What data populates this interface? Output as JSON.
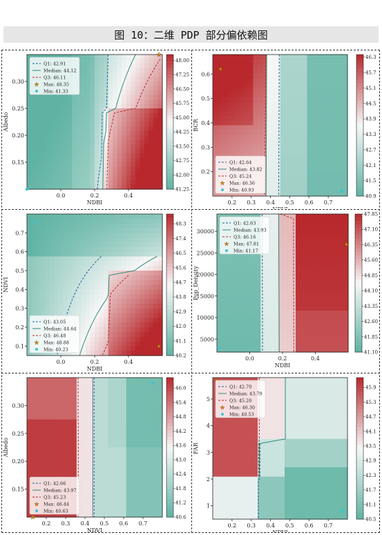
{
  "header": {
    "title": "图 10：二维 PDP 部分偏依赖图"
  },
  "colors": {
    "low": "#5fb3a3",
    "mid": "#f7f7f7",
    "high": "#b8282c",
    "q1": "#1f5f9a",
    "median": "#2e8b7a",
    "q3": "#b8282c",
    "max_marker": "#d08a1a",
    "min_marker": "#3cc4cf"
  },
  "chart_data": [
    {
      "type": "heatmap",
      "xlabel": "NDBI",
      "ylabel": "Albedo",
      "xlim": [
        -0.2,
        0.6
      ],
      "ylim": [
        0.1,
        0.35
      ],
      "xticks": [
        "0.0",
        "0.2",
        "0.4"
      ],
      "xtick_vals": [
        0.0,
        0.2,
        0.4
      ],
      "yticks": [
        "0.15",
        "0.20",
        "0.25",
        "0.30"
      ],
      "ytick_vals": [
        0.15,
        0.2,
        0.25,
        0.3
      ],
      "cbar_ticks": [
        "41.25",
        "41.50",
        "41.75",
        "42.00",
        "42.25",
        "42.50",
        "42.75",
        "43.00",
        "43.25",
        "43.50",
        "43.75",
        "44.00",
        "44.25",
        "44.50",
        "44.75",
        "45.00",
        "45.25",
        "45.50",
        "45.75",
        "46.00",
        "46.25",
        "46.50",
        "46.75",
        "47.00",
        "47.25",
        "47.50",
        "47.75",
        "48.00",
        "48.25"
      ],
      "cbar_labels": [
        "41.25",
        "42.00",
        "42.75",
        "43.50",
        "44.25",
        "45.00",
        "45.75",
        "46.50",
        "47.25",
        "48.00"
      ],
      "cbar_range": [
        41.25,
        48.3
      ],
      "legend": [
        "Q1: 42.91",
        "Median: 44.12",
        "Q3: 46.11",
        "Max: 48.35",
        "Min: 41.33"
      ],
      "legend_position": "top-left",
      "max_point": {
        "x": 0.58,
        "y": 0.35
      },
      "min_point": {
        "x": -0.2,
        "y": 0.1
      }
    },
    {
      "type": "heatmap",
      "xlabel": "NDVI",
      "ylabel": "BCR",
      "xlim": [
        0.1,
        0.8
      ],
      "ylim": [
        0.1,
        0.68
      ],
      "xticks": [
        "0.2",
        "0.3",
        "0.4",
        "0.5",
        "0.6",
        "0.7"
      ],
      "xtick_vals": [
        0.2,
        0.3,
        0.4,
        0.5,
        0.6,
        0.7
      ],
      "yticks": [
        "0.2",
        "0.3",
        "0.4",
        "0.5",
        "0.6"
      ],
      "ytick_vals": [
        0.2,
        0.3,
        0.4,
        0.5,
        0.6
      ],
      "cbar_labels": [
        "40.9",
        "41.5",
        "42.1",
        "42.7",
        "43.3",
        "43.9",
        "44.5",
        "45.1",
        "45.7",
        "46.3"
      ],
      "cbar_range": [
        40.9,
        46.4
      ],
      "legend": [
        "Q1: 42.64",
        "Median: 43.82",
        "Q3: 45.24",
        "Max: 46.36",
        "Min: 40.93"
      ],
      "legend_position": "bottom-left",
      "max_point": {
        "x": 0.14,
        "y": 0.62
      },
      "min_point": {
        "x": 0.77,
        "y": 0.12
      }
    },
    {
      "type": "heatmap",
      "xlabel": "NDBI",
      "ylabel": "NDVI",
      "xlim": [
        -0.2,
        0.6
      ],
      "ylim": [
        0.05,
        0.8
      ],
      "xticks": [
        "0.0",
        "0.2",
        "0.4"
      ],
      "xtick_vals": [
        0.0,
        0.2,
        0.4
      ],
      "yticks": [
        "0.1",
        "0.2",
        "0.3",
        "0.4",
        "0.5",
        "0.6",
        "0.7"
      ],
      "ytick_vals": [
        0.1,
        0.2,
        0.3,
        0.4,
        0.5,
        0.6,
        0.7
      ],
      "cbar_labels": [
        "40.2",
        "41.1",
        "42.0",
        "42.9",
        "43.8",
        "44.7",
        "45.6",
        "46.5",
        "47.4",
        "48.3"
      ],
      "cbar_range": [
        40.2,
        48.9
      ],
      "legend": [
        "Q1: 43.05",
        "Median: 44.64",
        "Q3: 46.48",
        "Max: 48.88",
        "Min: 40.23"
      ],
      "legend_position": "bottom-left",
      "max_point": {
        "x": 0.58,
        "y": 0.1
      },
      "min_point": {
        "x": -0.15,
        "y": 0.76
      }
    },
    {
      "type": "heatmap",
      "xlabel": "NDBI",
      "ylabel": "Pop_Density",
      "xlim": [
        -0.2,
        0.6
      ],
      "ylim": [
        2000,
        34000
      ],
      "xticks": [
        "0.0",
        "0.2",
        "0.4"
      ],
      "xtick_vals": [
        0.0,
        0.2,
        0.4
      ],
      "yticks": [
        "5000",
        "10000",
        "15000",
        "20000",
        "25000",
        "30000"
      ],
      "ytick_vals": [
        5000,
        10000,
        15000,
        20000,
        25000,
        30000
      ],
      "cbar_labels": [
        "41.10",
        "41.85",
        "42.60",
        "43.35",
        "44.10",
        "44.85",
        "45.60",
        "46.35",
        "47.10",
        "47.85"
      ],
      "cbar_range": [
        41.1,
        47.85
      ],
      "legend": [
        "Q1: 42.63",
        "Median: 43.93",
        "Q3: 46.16",
        "Max: 47.81",
        "Min: 41.17"
      ],
      "legend_position": "top-left",
      "max_point": {
        "x": 0.59,
        "y": 27000
      },
      "min_point": {
        "x": -0.19,
        "y": 3000
      }
    },
    {
      "type": "heatmap",
      "xlabel": "NDVI",
      "ylabel": "Albedo",
      "xlim": [
        0.1,
        0.8
      ],
      "ylim": [
        0.1,
        0.35
      ],
      "xticks": [
        "0.2",
        "0.3",
        "0.4",
        "0.5",
        "0.6",
        "0.7"
      ],
      "xtick_vals": [
        0.2,
        0.3,
        0.4,
        0.5,
        0.6,
        0.7
      ],
      "yticks": [
        "0.15",
        "0.20",
        "0.25",
        "0.30"
      ],
      "ytick_vals": [
        0.15,
        0.2,
        0.25,
        0.3
      ],
      "cbar_labels": [
        "40.6",
        "41.2",
        "41.8",
        "42.4",
        "43.0",
        "43.6",
        "44.2",
        "44.8",
        "45.4",
        "46.0"
      ],
      "cbar_range": [
        40.6,
        46.44
      ],
      "legend": [
        "Q1: 42.66",
        "Median: 43.97",
        "Q3: 45.23",
        "Max: 46.44",
        "Min: 40.63"
      ],
      "legend_position": "bottom-left",
      "max_point": {
        "x": 0.13,
        "y": 0.1
      },
      "min_point": {
        "x": 0.75,
        "y": 0.34
      }
    },
    {
      "type": "heatmap",
      "xlabel": "NDVI",
      "ylabel": "FAR",
      "xlim": [
        0.1,
        0.8
      ],
      "ylim": [
        0.5,
        5.8
      ],
      "xticks": [
        "0.2",
        "0.3",
        "0.4",
        "0.5",
        "0.6",
        "0.7"
      ],
      "xtick_vals": [
        0.2,
        0.3,
        0.4,
        0.5,
        0.6,
        0.7
      ],
      "yticks": [
        "1",
        "2",
        "3",
        "4",
        "5"
      ],
      "ytick_vals": [
        1,
        2,
        3,
        4,
        5
      ],
      "cbar_labels": [
        "40.5",
        "41.1",
        "41.7",
        "42.3",
        "42.9",
        "43.5",
        "44.1",
        "44.7",
        "45.3",
        "45.9"
      ],
      "cbar_range": [
        40.5,
        46.3
      ],
      "legend": [
        "Q1: 42.70",
        "Median: 43.79",
        "Q3: 45.20",
        "Max: 46.30",
        "Min: 40.53"
      ],
      "legend_position": "top-left",
      "max_point": {
        "x": 0.12,
        "y": 5.7
      },
      "min_point": {
        "x": 0.77,
        "y": 0.8
      }
    }
  ]
}
